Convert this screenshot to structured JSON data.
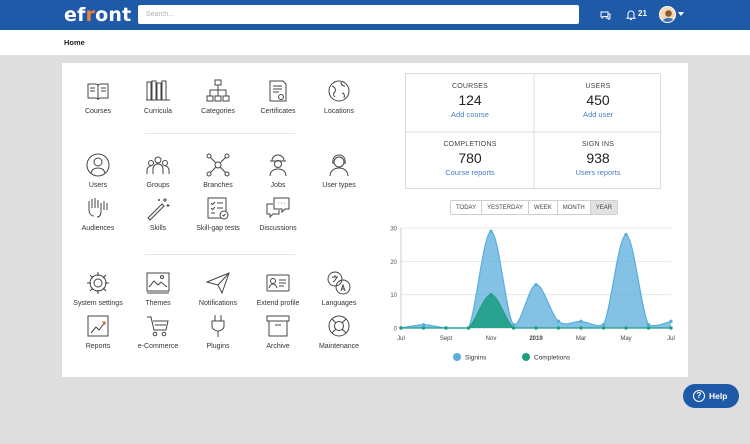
{
  "header": {
    "logo": "efront",
    "search_placeholder": "Search...",
    "notification_count": "21"
  },
  "breadcrumb": "Home",
  "tiles": {
    "courses": "Courses",
    "curricula": "Curricula",
    "categories": "Categories",
    "certificates": "Certificates",
    "locations": "Locations",
    "users": "Users",
    "groups": "Groups",
    "branches": "Branches",
    "jobs": "Jobs",
    "user_types": "User types",
    "audiences": "Audiences",
    "skills": "Skills",
    "skill_gap_tests": "Skill-gap tests",
    "discussions": "Discussions",
    "system_settings": "System settings",
    "themes": "Themes",
    "notifications": "Notifications",
    "extend_profile": "Extend profile",
    "languages": "Languages",
    "reports": "Reports",
    "ecommerce": "e-Commerce",
    "plugins": "Plugins",
    "archive": "Archive",
    "maintenance": "Maintenance"
  },
  "stats": {
    "courses": {
      "title": "COURSES",
      "value": "124",
      "link": "Add course"
    },
    "users": {
      "title": "USERS",
      "value": "450",
      "link": "Add user"
    },
    "completions": {
      "title": "COMPLETIONS",
      "value": "780",
      "link": "Course reports"
    },
    "signins": {
      "title": "SIGN INS",
      "value": "938",
      "link": "Users reports"
    }
  },
  "range_buttons": [
    "TODAY",
    "YESTERDAY",
    "WEEK",
    "MONTH",
    "YEAR"
  ],
  "range_selected": "YEAR",
  "help_label": "Help",
  "colors": {
    "brand": "#1e5aa8",
    "signins": "#5aaedc",
    "completions": "#1f9e86",
    "link": "#4a7ec2"
  },
  "chart_data": {
    "type": "area",
    "x_ticks": [
      "Jul",
      "Sept",
      "Nov",
      "2019",
      "Mar",
      "May",
      "Jul"
    ],
    "ylim": [
      0,
      30
    ],
    "y_ticks": [
      0,
      10,
      20,
      30
    ],
    "grid": true,
    "legend_position": "bottom",
    "x": [
      0,
      1,
      2,
      3,
      4,
      5,
      6,
      7,
      8,
      9,
      10,
      11,
      12
    ],
    "series": [
      {
        "name": "Signins",
        "color": "#5aaedc",
        "values": [
          0,
          1,
          0,
          0,
          29,
          1,
          13,
          2,
          2,
          1,
          28,
          1,
          2
        ]
      },
      {
        "name": "Completions",
        "color": "#1f9e86",
        "values": [
          0,
          0,
          0,
          0,
          10,
          0,
          0,
          0,
          0,
          0,
          0,
          0,
          0
        ]
      }
    ]
  }
}
